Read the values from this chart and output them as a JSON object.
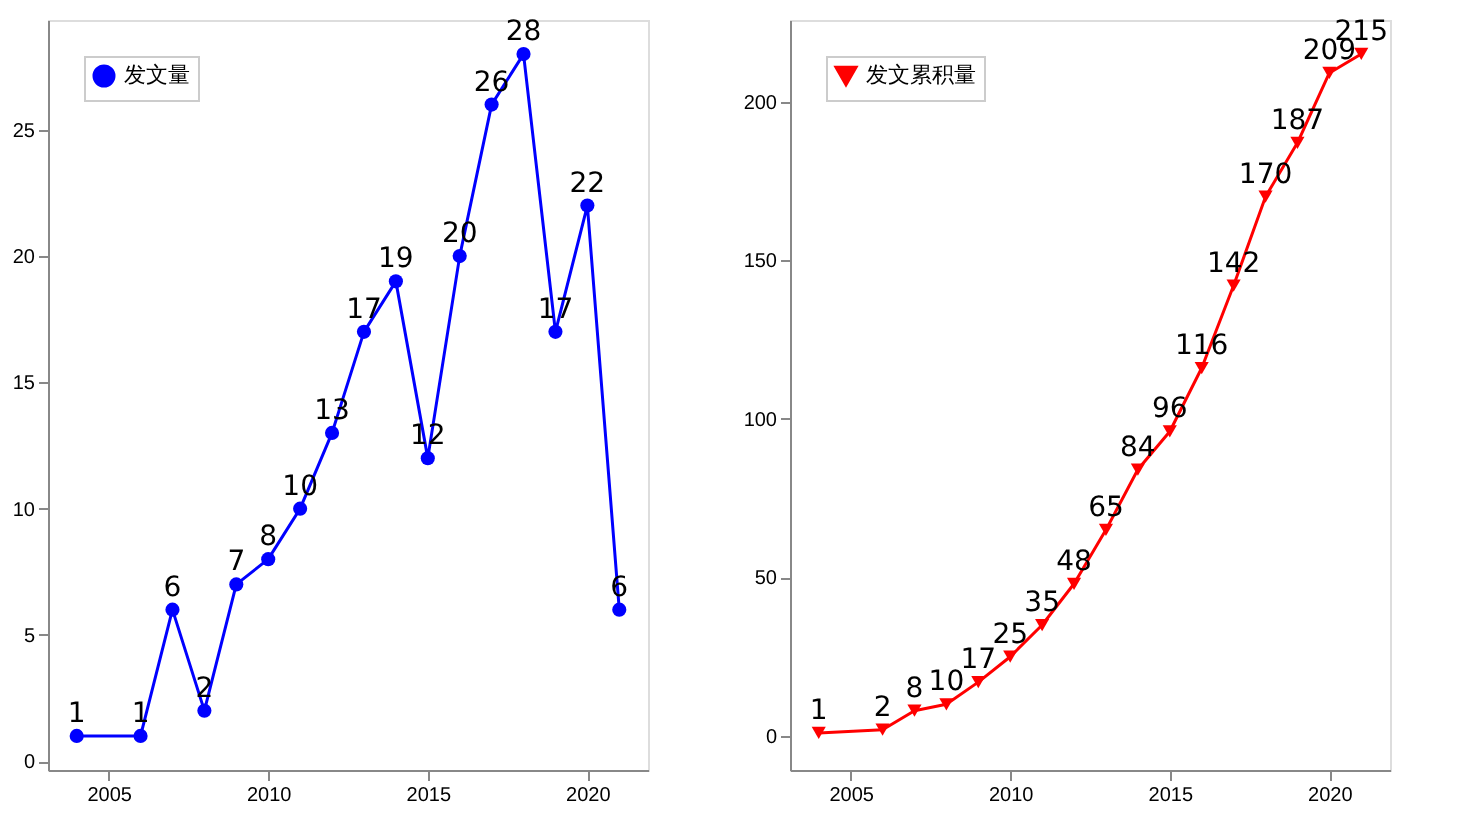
{
  "chart_data": [
    {
      "type": "line",
      "x": [
        2004,
        2006,
        2007,
        2008,
        2009,
        2010,
        2011,
        2012,
        2013,
        2014,
        2015,
        2016,
        2017,
        2018,
        2019,
        2020,
        2021
      ],
      "series": [
        {
          "name": "发文量",
          "color": "#0000ff",
          "values": [
            1,
            1,
            6,
            2,
            7,
            8,
            10,
            13,
            17,
            19,
            12,
            20,
            26,
            28,
            17,
            22,
            6
          ]
        }
      ],
      "xlim": [
        2003.1,
        2021.9
      ],
      "ylim": [
        -0.35,
        29.35
      ],
      "xticks": [
        2005,
        2010,
        2015,
        2020
      ],
      "yticks": [
        0,
        5,
        10,
        15,
        20,
        25
      ],
      "marker": "circle",
      "data_labels": true,
      "legend": "top left",
      "grid": false
    },
    {
      "type": "line",
      "x": [
        2004,
        2006,
        2007,
        2008,
        2009,
        2010,
        2011,
        2012,
        2013,
        2014,
        2015,
        2016,
        2017,
        2018,
        2019,
        2020,
        2021
      ],
      "series": [
        {
          "name": "发文累积量",
          "color": "#ff0000",
          "values": [
            1,
            2,
            8,
            10,
            17,
            25,
            35,
            48,
            65,
            84,
            96,
            116,
            142,
            170,
            187,
            209,
            215
          ]
        }
      ],
      "xlim": [
        2003.1,
        2021.9
      ],
      "ylim": [
        -10.7,
        225.7
      ],
      "xticks": [
        2005,
        2010,
        2015,
        2020
      ],
      "yticks": [
        0,
        50,
        100,
        150,
        200
      ],
      "marker": "triangle",
      "data_labels": true,
      "legend": "top left",
      "grid": false
    }
  ]
}
